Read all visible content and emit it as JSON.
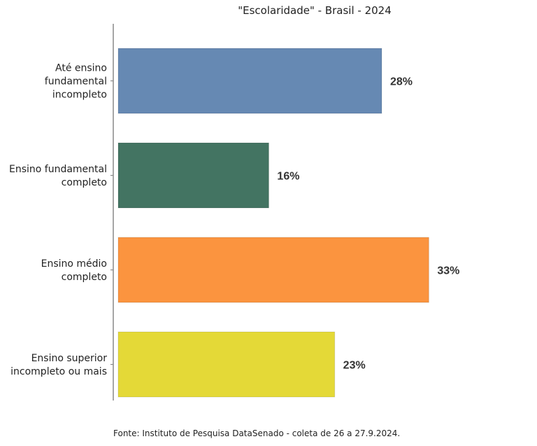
{
  "chart_data": {
    "type": "bar",
    "orientation": "horizontal",
    "title": "\"Escolaridade\" - Brasil - 2024",
    "categories": [
      [
        "Até ensino",
        "fundamental",
        "incompleto"
      ],
      [
        "Ensino fundamental",
        "completo"
      ],
      [
        "Ensino médio",
        "completo"
      ],
      [
        "Ensino superior",
        "incompleto ou mais"
      ]
    ],
    "values": [
      28,
      16,
      33,
      23
    ],
    "value_labels": [
      "28%",
      "16%",
      "33%",
      "23%"
    ],
    "colors": [
      "#6689b3",
      "#437462",
      "#fb943f",
      "#e4d937"
    ],
    "xlim": [
      0,
      40
    ],
    "grid": false,
    "legend": "none"
  },
  "source": "Fonte: Instituto de Pesquisa DataSenado - coleta de 26 a 27.9.2024."
}
